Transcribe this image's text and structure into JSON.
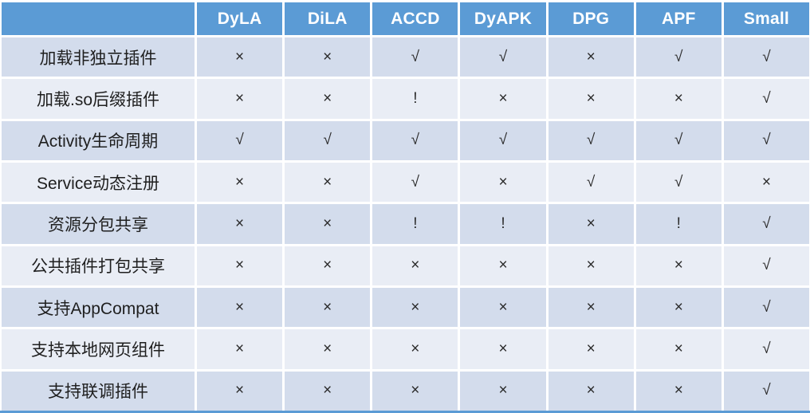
{
  "chart_data": {
    "type": "table",
    "title": "",
    "columns": [
      "",
      "DyLA",
      "DiLA",
      "ACCD",
      "DyAPK",
      "DPG",
      "APF",
      "Small"
    ],
    "rows": [
      {
        "label": "加载非独立插件",
        "values": [
          "×",
          "×",
          "√",
          "√",
          "×",
          "√",
          "√"
        ]
      },
      {
        "label": "加载.so后缀插件",
        "values": [
          "×",
          "×",
          "!",
          "×",
          "×",
          "×",
          "√"
        ]
      },
      {
        "label": "Activity生命周期",
        "values": [
          "√",
          "√",
          "√",
          "√",
          "√",
          "√",
          "√"
        ]
      },
      {
        "label": "Service动态注册",
        "values": [
          "×",
          "×",
          "√",
          "×",
          "√",
          "√",
          "×"
        ]
      },
      {
        "label": "资源分包共享",
        "values": [
          "×",
          "×",
          "!",
          "!",
          "×",
          "!",
          "√"
        ]
      },
      {
        "label": "公共插件打包共享",
        "values": [
          "×",
          "×",
          "×",
          "×",
          "×",
          "×",
          "√"
        ]
      },
      {
        "label": "支持AppCompat",
        "values": [
          "×",
          "×",
          "×",
          "×",
          "×",
          "×",
          "√"
        ]
      },
      {
        "label": "支持本地网页组件",
        "values": [
          "×",
          "×",
          "×",
          "×",
          "×",
          "×",
          "√"
        ]
      },
      {
        "label": "支持联调插件",
        "values": [
          "×",
          "×",
          "×",
          "×",
          "×",
          "×",
          "√"
        ]
      }
    ],
    "legend_symbols": {
      "supported": "√",
      "unsupported": "×",
      "partial": "!"
    },
    "layout": {
      "banded_rows": true,
      "header_position": "top"
    }
  },
  "colors": {
    "header_bg": "#5B9BD5",
    "row_odd_bg": "#D3DCEC",
    "row_even_bg": "#E9EDF5",
    "header_text": "#FFFFFF",
    "body_text": "#1F1F1F",
    "grid_gap": "#FFFFFF",
    "bottom_border": "#5B9BD5"
  }
}
